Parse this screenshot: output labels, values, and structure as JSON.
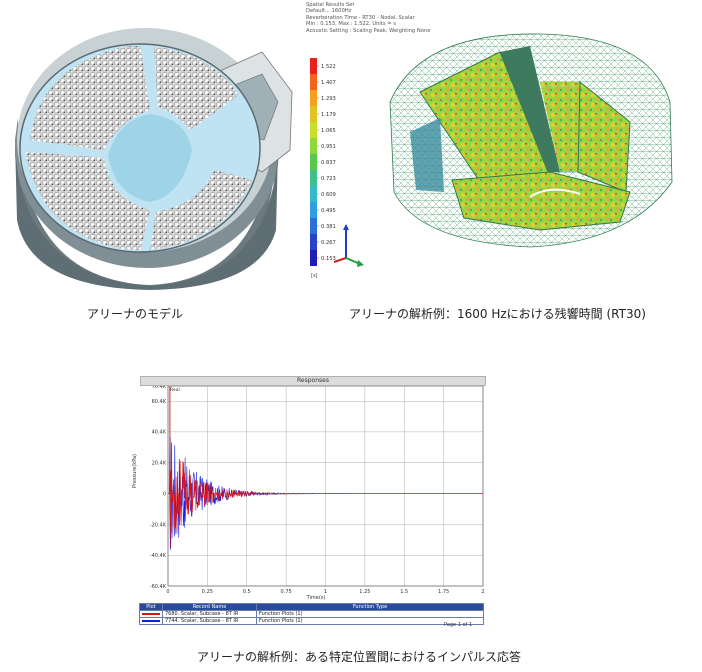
{
  "results_header": [
    "Spatial Results Set",
    "Default... 1600Hz",
    "Reverberation Time - RT30 - Nodal, Scalar",
    "Min : 0.153, Max : 1.522, Units = s",
    "Acoustic Setting : Scaling Peak, Weighting None"
  ],
  "colorbar": {
    "ticks": [
      "1.522",
      "1.407",
      "1.293",
      "1.179",
      "1.065",
      "0.951",
      "0.837",
      "0.723",
      "0.609",
      "0.495",
      "0.381",
      "0.267",
      "0.153"
    ],
    "colors": [
      "#e8211c",
      "#f2641c",
      "#f5a11f",
      "#e2c421",
      "#c9df2a",
      "#8fd83a",
      "#5ac84d",
      "#3fbf8a",
      "#35b8c8",
      "#2f9ee0",
      "#2b6fd9",
      "#2544c9",
      "#1e1db8"
    ]
  },
  "triad_label": "[s]",
  "captions": {
    "model": "アリーナのモデル",
    "rt30": "アリーナの解析例：1600 Hzにおける残響時間 (RT30)",
    "impulse": "アリーナの解析例：ある特定位置間におけるインパルス応答"
  },
  "plot": {
    "title": "Responses",
    "y_label": "Pressure(kPa)",
    "x_label": "Time(s)",
    "y_ticks": [
      "70.4K",
      "60.4K",
      "40.4K",
      "20.4K",
      "0",
      "-20.4K",
      "-40.4K",
      "-60.4K"
    ],
    "x_ticks": [
      "0",
      "0.25",
      "0.5",
      "0.75",
      "1",
      "1.25",
      "1.5",
      "1.75",
      "2"
    ],
    "corner_label": "Real",
    "page_indicator": "Page 1 of 1"
  },
  "chart_data": {
    "type": "line",
    "x_range": [
      0,
      2
    ],
    "y_range": [
      -60.4,
      70.4
    ],
    "series": [
      {
        "name": "7680. Scalar, Subcase - 8T IR",
        "color": "#e01010"
      },
      {
        "name": "7744. Scalar, Subcase - 8T IR",
        "color": "#1020e0"
      }
    ]
  },
  "legend": {
    "headers": [
      "Plot",
      "Record Name",
      "Function Type"
    ],
    "rows": [
      {
        "name": "7680. Scalar, Subcase - 8T IR",
        "type": "Function Plots (1)",
        "color": "#e01010"
      },
      {
        "name": "7744. Scalar, Subcase - 8T IR",
        "type": "Function Plots (1)",
        "color": "#1020e0"
      }
    ]
  }
}
